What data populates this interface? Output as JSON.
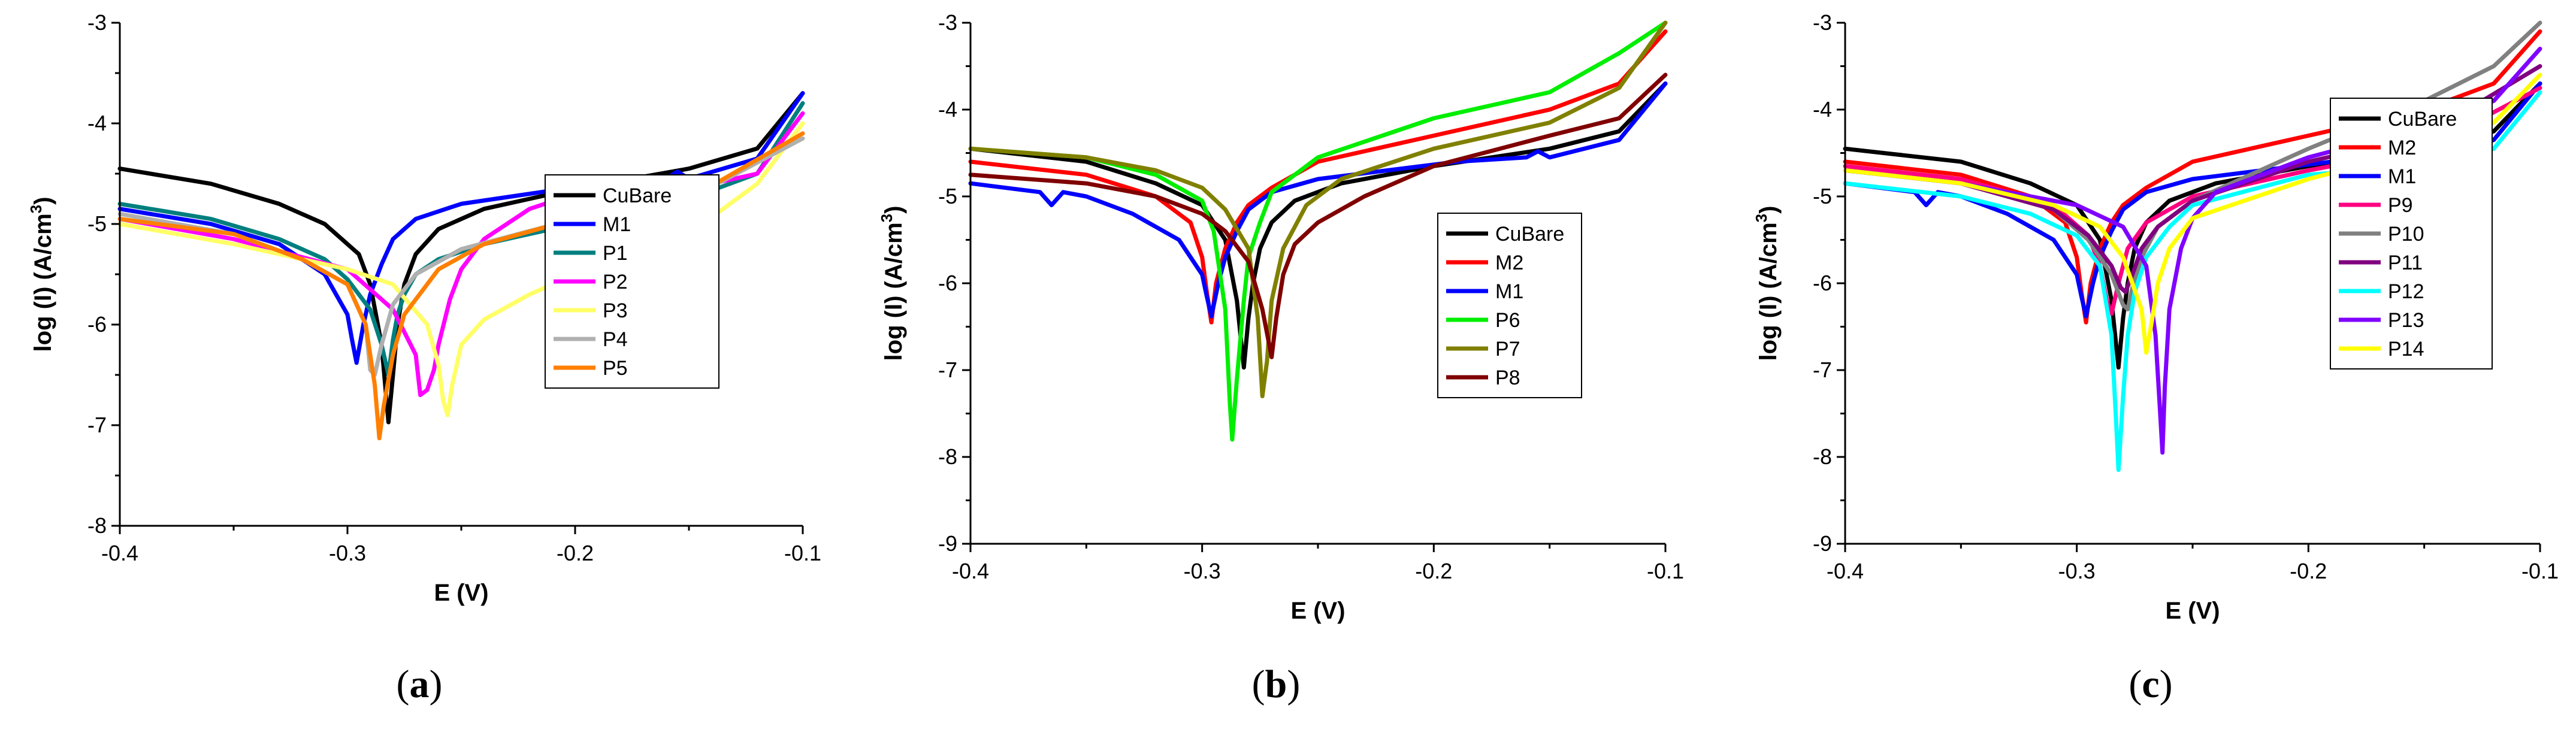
{
  "chart_data": [
    {
      "type": "line",
      "caption": {
        "open": "(",
        "letter": "a",
        "close": ")"
      },
      "xlabel": "E (V)",
      "ylabel": "log (I) (A/cm",
      "ylabel_sup": "3",
      "ylabel_close": ")",
      "xlim": [
        -0.4,
        -0.1
      ],
      "ylim": [
        -8,
        -3
      ],
      "xticks": [
        -0.4,
        -0.3,
        -0.2,
        -0.1
      ],
      "yticks": [
        -8,
        -7,
        -6,
        -5,
        -4,
        -3
      ],
      "xtick_labels": [
        "-0.4",
        "-0.3",
        "-0.2",
        "-0.1"
      ],
      "ytick_labels": [
        "-8",
        "-7",
        "-6",
        "-5",
        "-4",
        "-3"
      ],
      "legend_position": "right-center",
      "series": [
        {
          "name": "CuBare",
          "color": "#000000",
          "x": [
            -0.4,
            -0.36,
            -0.33,
            -0.31,
            -0.295,
            -0.29,
            -0.285,
            -0.282,
            -0.28,
            -0.278,
            -0.275,
            -0.27,
            -0.26,
            -0.24,
            -0.2,
            -0.15,
            -0.12,
            -0.1
          ],
          "y": [
            -4.45,
            -4.6,
            -4.8,
            -5.0,
            -5.3,
            -5.6,
            -6.2,
            -6.97,
            -6.5,
            -6.0,
            -5.6,
            -5.3,
            -5.05,
            -4.85,
            -4.65,
            -4.45,
            -4.25,
            -3.7
          ]
        },
        {
          "name": "M1",
          "color": "#0000ff",
          "x": [
            -0.4,
            -0.36,
            -0.33,
            -0.31,
            -0.3,
            -0.298,
            -0.296,
            -0.293,
            -0.29,
            -0.285,
            -0.28,
            -0.27,
            -0.25,
            -0.22,
            -0.19,
            -0.16,
            -0.155,
            -0.15,
            -0.12,
            -0.1
          ],
          "y": [
            -4.85,
            -5.0,
            -5.2,
            -5.5,
            -5.9,
            -6.15,
            -6.38,
            -6.0,
            -5.7,
            -5.4,
            -5.15,
            -4.95,
            -4.8,
            -4.7,
            -4.6,
            -4.55,
            -4.48,
            -4.55,
            -4.35,
            -3.7
          ]
        },
        {
          "name": "P1",
          "color": "#007f7f",
          "x": [
            -0.4,
            -0.36,
            -0.33,
            -0.31,
            -0.3,
            -0.29,
            -0.285,
            -0.282,
            -0.28,
            -0.278,
            -0.275,
            -0.27,
            -0.26,
            -0.24,
            -0.2,
            -0.15,
            -0.12,
            -0.1
          ],
          "y": [
            -4.8,
            -4.95,
            -5.15,
            -5.35,
            -5.55,
            -5.85,
            -6.2,
            -6.5,
            -6.15,
            -5.9,
            -5.7,
            -5.5,
            -5.35,
            -5.2,
            -5.0,
            -4.75,
            -4.5,
            -3.8
          ]
        },
        {
          "name": "P2",
          "color": "#ff00ff",
          "x": [
            -0.4,
            -0.35,
            -0.3,
            -0.28,
            -0.27,
            -0.268,
            -0.265,
            -0.262,
            -0.26,
            -0.255,
            -0.25,
            -0.24,
            -0.22,
            -0.2,
            -0.15,
            -0.12,
            -0.1
          ],
          "y": [
            -4.95,
            -5.15,
            -5.45,
            -5.85,
            -6.3,
            -6.7,
            -6.65,
            -6.45,
            -6.2,
            -5.75,
            -5.45,
            -5.15,
            -4.85,
            -4.7,
            -4.65,
            -4.5,
            -3.9
          ]
        },
        {
          "name": "P3",
          "color": "#ffff66",
          "x": [
            -0.4,
            -0.35,
            -0.3,
            -0.28,
            -0.265,
            -0.26,
            -0.258,
            -0.256,
            -0.254,
            -0.25,
            -0.24,
            -0.22,
            -0.2,
            -0.15,
            -0.12,
            -0.1
          ],
          "y": [
            -5.0,
            -5.2,
            -5.45,
            -5.6,
            -6.0,
            -6.4,
            -6.75,
            -6.9,
            -6.6,
            -6.2,
            -5.95,
            -5.7,
            -5.5,
            -5.1,
            -4.6,
            -4.0
          ]
        },
        {
          "name": "P4",
          "color": "#b0b0b0",
          "x": [
            -0.4,
            -0.35,
            -0.32,
            -0.3,
            -0.292,
            -0.29,
            -0.288,
            -0.285,
            -0.28,
            -0.27,
            -0.25,
            -0.2,
            -0.15,
            -0.1
          ],
          "y": [
            -4.9,
            -5.1,
            -5.35,
            -5.6,
            -6.0,
            -6.45,
            -6.5,
            -6.2,
            -5.8,
            -5.5,
            -5.25,
            -4.95,
            -4.75,
            -4.15
          ]
        },
        {
          "name": "P5",
          "color": "#ff7f00",
          "x": [
            -0.4,
            -0.35,
            -0.32,
            -0.3,
            -0.292,
            -0.288,
            -0.286,
            -0.284,
            -0.28,
            -0.275,
            -0.26,
            -0.24,
            -0.2,
            -0.15,
            -0.1
          ],
          "y": [
            -4.95,
            -5.1,
            -5.35,
            -5.6,
            -6.0,
            -6.6,
            -7.13,
            -6.8,
            -6.3,
            -5.9,
            -5.45,
            -5.2,
            -4.95,
            -4.75,
            -4.1
          ]
        }
      ]
    },
    {
      "type": "line",
      "caption": {
        "open": "(",
        "letter": "b",
        "close": ")"
      },
      "xlabel": "E (V)",
      "ylabel": "log (I) (A/cm",
      "ylabel_sup": "3",
      "ylabel_close": ")",
      "xlim": [
        -0.4,
        -0.1
      ],
      "ylim": [
        -9,
        -3
      ],
      "xticks": [
        -0.4,
        -0.3,
        -0.2,
        -0.1
      ],
      "yticks": [
        -9,
        -8,
        -7,
        -6,
        -5,
        -4,
        -3
      ],
      "xtick_labels": [
        "-0.4",
        "-0.3",
        "-0.2",
        "-0.1"
      ],
      "ytick_labels": [
        "-9",
        "-8",
        "-7",
        "-6",
        "-5",
        "-4",
        "-3"
      ],
      "legend_position": "right-center",
      "series": [
        {
          "name": "CuBare",
          "color": "#000000",
          "x": [
            -0.4,
            -0.35,
            -0.32,
            -0.3,
            -0.29,
            -0.285,
            -0.282,
            -0.28,
            -0.278,
            -0.275,
            -0.27,
            -0.26,
            -0.24,
            -0.2,
            -0.15,
            -0.12,
            -0.1
          ],
          "y": [
            -4.45,
            -4.6,
            -4.85,
            -5.1,
            -5.5,
            -6.2,
            -6.97,
            -6.4,
            -6.0,
            -5.6,
            -5.3,
            -5.05,
            -4.85,
            -4.65,
            -4.45,
            -4.25,
            -3.7
          ]
        },
        {
          "name": "M2",
          "color": "#ff0000",
          "x": [
            -0.4,
            -0.35,
            -0.32,
            -0.305,
            -0.3,
            -0.298,
            -0.296,
            -0.294,
            -0.29,
            -0.285,
            -0.28,
            -0.27,
            -0.25,
            -0.2,
            -0.15,
            -0.12,
            -0.1
          ],
          "y": [
            -4.6,
            -4.75,
            -5.0,
            -5.3,
            -5.7,
            -6.1,
            -6.45,
            -6.0,
            -5.6,
            -5.3,
            -5.1,
            -4.9,
            -4.6,
            -4.3,
            -4.0,
            -3.7,
            -3.1
          ]
        },
        {
          "name": "M1",
          "color": "#0000ff",
          "x": [
            -0.4,
            -0.37,
            -0.365,
            -0.36,
            -0.35,
            -0.33,
            -0.31,
            -0.3,
            -0.298,
            -0.296,
            -0.293,
            -0.29,
            -0.285,
            -0.28,
            -0.27,
            -0.25,
            -0.22,
            -0.19,
            -0.16,
            -0.155,
            -0.15,
            -0.12,
            -0.1
          ],
          "y": [
            -4.85,
            -4.95,
            -5.1,
            -4.95,
            -5.0,
            -5.2,
            -5.5,
            -5.9,
            -6.15,
            -6.38,
            -6.0,
            -5.7,
            -5.4,
            -5.15,
            -4.95,
            -4.8,
            -4.7,
            -4.6,
            -4.55,
            -4.48,
            -4.55,
            -4.35,
            -3.7
          ]
        },
        {
          "name": "P6",
          "color": "#00ee00",
          "x": [
            -0.4,
            -0.35,
            -0.32,
            -0.3,
            -0.295,
            -0.29,
            -0.288,
            -0.287,
            -0.285,
            -0.282,
            -0.28,
            -0.275,
            -0.27,
            -0.25,
            -0.2,
            -0.15,
            -0.12,
            -0.1
          ],
          "y": [
            -4.45,
            -4.55,
            -4.75,
            -5.05,
            -5.4,
            -6.3,
            -7.4,
            -7.8,
            -7.1,
            -6.2,
            -5.7,
            -5.3,
            -4.95,
            -4.55,
            -4.1,
            -3.8,
            -3.35,
            -3.0
          ]
        },
        {
          "name": "P7",
          "color": "#808000",
          "x": [
            -0.4,
            -0.35,
            -0.32,
            -0.3,
            -0.29,
            -0.28,
            -0.276,
            -0.274,
            -0.272,
            -0.27,
            -0.265,
            -0.255,
            -0.24,
            -0.2,
            -0.15,
            -0.12,
            -0.1
          ],
          "y": [
            -4.45,
            -4.55,
            -4.7,
            -4.9,
            -5.15,
            -5.6,
            -6.4,
            -7.3,
            -6.9,
            -6.2,
            -5.6,
            -5.1,
            -4.8,
            -4.45,
            -4.15,
            -3.75,
            -3.0
          ]
        },
        {
          "name": "P8",
          "color": "#800000",
          "x": [
            -0.4,
            -0.35,
            -0.32,
            -0.3,
            -0.29,
            -0.28,
            -0.274,
            -0.27,
            -0.268,
            -0.265,
            -0.26,
            -0.25,
            -0.23,
            -0.2,
            -0.15,
            -0.12,
            -0.1
          ],
          "y": [
            -4.75,
            -4.85,
            -5.0,
            -5.2,
            -5.4,
            -5.75,
            -6.3,
            -6.85,
            -6.4,
            -5.9,
            -5.55,
            -5.3,
            -5.0,
            -4.65,
            -4.3,
            -4.1,
            -3.6
          ]
        }
      ]
    },
    {
      "type": "line",
      "caption": {
        "open": "(",
        "letter": "c",
        "close": ")"
      },
      "xlabel": "E (V)",
      "ylabel": "log (I) (A/cm",
      "ylabel_sup": "3",
      "ylabel_close": ")",
      "xlim": [
        -0.4,
        -0.1
      ],
      "ylim": [
        -9,
        -3
      ],
      "xticks": [
        -0.4,
        -0.3,
        -0.2,
        -0.1
      ],
      "yticks": [
        -9,
        -8,
        -7,
        -6,
        -5,
        -4,
        -3
      ],
      "xtick_labels": [
        "-0.4",
        "-0.3",
        "-0.2",
        "-0.1"
      ],
      "ytick_labels": [
        "-9",
        "-8",
        "-7",
        "-6",
        "-5",
        "-4",
        "-3"
      ],
      "legend_position": "right-center",
      "series": [
        {
          "name": "CuBare",
          "color": "#000000",
          "x": [
            -0.4,
            -0.35,
            -0.32,
            -0.3,
            -0.29,
            -0.285,
            -0.282,
            -0.28,
            -0.278,
            -0.275,
            -0.27,
            -0.26,
            -0.24,
            -0.2,
            -0.15,
            -0.12,
            -0.1
          ],
          "y": [
            -4.45,
            -4.6,
            -4.85,
            -5.1,
            -5.5,
            -6.2,
            -6.97,
            -6.4,
            -6.0,
            -5.6,
            -5.3,
            -5.05,
            -4.85,
            -4.65,
            -4.45,
            -4.25,
            -3.7
          ]
        },
        {
          "name": "M2",
          "color": "#ff0000",
          "x": [
            -0.4,
            -0.35,
            -0.32,
            -0.305,
            -0.3,
            -0.298,
            -0.296,
            -0.294,
            -0.29,
            -0.285,
            -0.28,
            -0.27,
            -0.25,
            -0.2,
            -0.15,
            -0.12,
            -0.1
          ],
          "y": [
            -4.6,
            -4.75,
            -5.0,
            -5.3,
            -5.7,
            -6.1,
            -6.45,
            -6.0,
            -5.6,
            -5.3,
            -5.1,
            -4.9,
            -4.6,
            -4.3,
            -4.0,
            -3.7,
            -3.1
          ]
        },
        {
          "name": "M1",
          "color": "#0000ff",
          "x": [
            -0.4,
            -0.37,
            -0.365,
            -0.36,
            -0.35,
            -0.33,
            -0.31,
            -0.3,
            -0.298,
            -0.296,
            -0.293,
            -0.29,
            -0.285,
            -0.28,
            -0.27,
            -0.25,
            -0.22,
            -0.19,
            -0.16,
            -0.155,
            -0.15,
            -0.12,
            -0.1
          ],
          "y": [
            -4.85,
            -4.95,
            -5.1,
            -4.95,
            -5.0,
            -5.2,
            -5.5,
            -5.9,
            -6.15,
            -6.38,
            -6.0,
            -5.7,
            -5.4,
            -5.15,
            -4.95,
            -4.8,
            -4.7,
            -4.6,
            -4.55,
            -4.48,
            -4.55,
            -4.35,
            -3.7
          ]
        },
        {
          "name": "P9",
          "color": "#ff0080",
          "x": [
            -0.4,
            -0.35,
            -0.31,
            -0.295,
            -0.29,
            -0.287,
            -0.285,
            -0.282,
            -0.278,
            -0.27,
            -0.25,
            -0.2,
            -0.15,
            -0.1
          ],
          "y": [
            -4.65,
            -4.8,
            -5.1,
            -5.45,
            -5.8,
            -6.2,
            -6.35,
            -6.0,
            -5.6,
            -5.3,
            -5.0,
            -4.7,
            -4.45,
            -3.75
          ]
        },
        {
          "name": "P10",
          "color": "#808080",
          "x": [
            -0.4,
            -0.35,
            -0.31,
            -0.295,
            -0.285,
            -0.28,
            -0.278,
            -0.276,
            -0.272,
            -0.265,
            -0.25,
            -0.2,
            -0.15,
            -0.12,
            -0.1
          ],
          "y": [
            -4.7,
            -4.85,
            -5.15,
            -5.5,
            -5.9,
            -6.25,
            -6.3,
            -6.05,
            -5.7,
            -5.35,
            -5.05,
            -4.45,
            -3.9,
            -3.5,
            -3.0
          ]
        },
        {
          "name": "P11",
          "color": "#800080",
          "x": [
            -0.4,
            -0.35,
            -0.31,
            -0.295,
            -0.285,
            -0.281,
            -0.279,
            -0.276,
            -0.272,
            -0.265,
            -0.25,
            -0.2,
            -0.15,
            -0.1
          ],
          "y": [
            -4.7,
            -4.85,
            -5.15,
            -5.45,
            -5.8,
            -6.05,
            -6.1,
            -5.9,
            -5.6,
            -5.35,
            -5.05,
            -4.6,
            -4.3,
            -3.5
          ]
        },
        {
          "name": "P12",
          "color": "#00ffff",
          "x": [
            -0.4,
            -0.35,
            -0.32,
            -0.3,
            -0.29,
            -0.285,
            -0.283,
            -0.282,
            -0.28,
            -0.278,
            -0.275,
            -0.27,
            -0.26,
            -0.25,
            -0.2,
            -0.15,
            -0.12,
            -0.1
          ],
          "y": [
            -4.85,
            -5.0,
            -5.2,
            -5.45,
            -5.8,
            -6.6,
            -7.6,
            -8.15,
            -7.3,
            -6.6,
            -6.1,
            -5.7,
            -5.35,
            -5.1,
            -4.75,
            -4.65,
            -4.45,
            -3.8
          ]
        },
        {
          "name": "P13",
          "color": "#8000ff",
          "x": [
            -0.4,
            -0.35,
            -0.3,
            -0.28,
            -0.27,
            -0.266,
            -0.264,
            -0.263,
            -0.262,
            -0.26,
            -0.255,
            -0.25,
            -0.24,
            -0.2,
            -0.15,
            -0.12,
            -0.1
          ],
          "y": [
            -4.7,
            -4.85,
            -5.1,
            -5.35,
            -5.8,
            -6.6,
            -7.5,
            -7.95,
            -7.2,
            -6.3,
            -5.6,
            -5.25,
            -4.95,
            -4.55,
            -4.2,
            -3.9,
            -3.3
          ]
        },
        {
          "name": "P14",
          "color": "#ffff00",
          "x": [
            -0.4,
            -0.35,
            -0.31,
            -0.29,
            -0.28,
            -0.272,
            -0.27,
            -0.268,
            -0.265,
            -0.26,
            -0.25,
            -0.2,
            -0.15,
            -0.12,
            -0.1
          ],
          "y": [
            -4.7,
            -4.85,
            -5.1,
            -5.35,
            -5.7,
            -6.3,
            -6.8,
            -6.5,
            -6.0,
            -5.6,
            -5.25,
            -4.8,
            -4.45,
            -4.15,
            -3.6
          ]
        }
      ]
    }
  ]
}
